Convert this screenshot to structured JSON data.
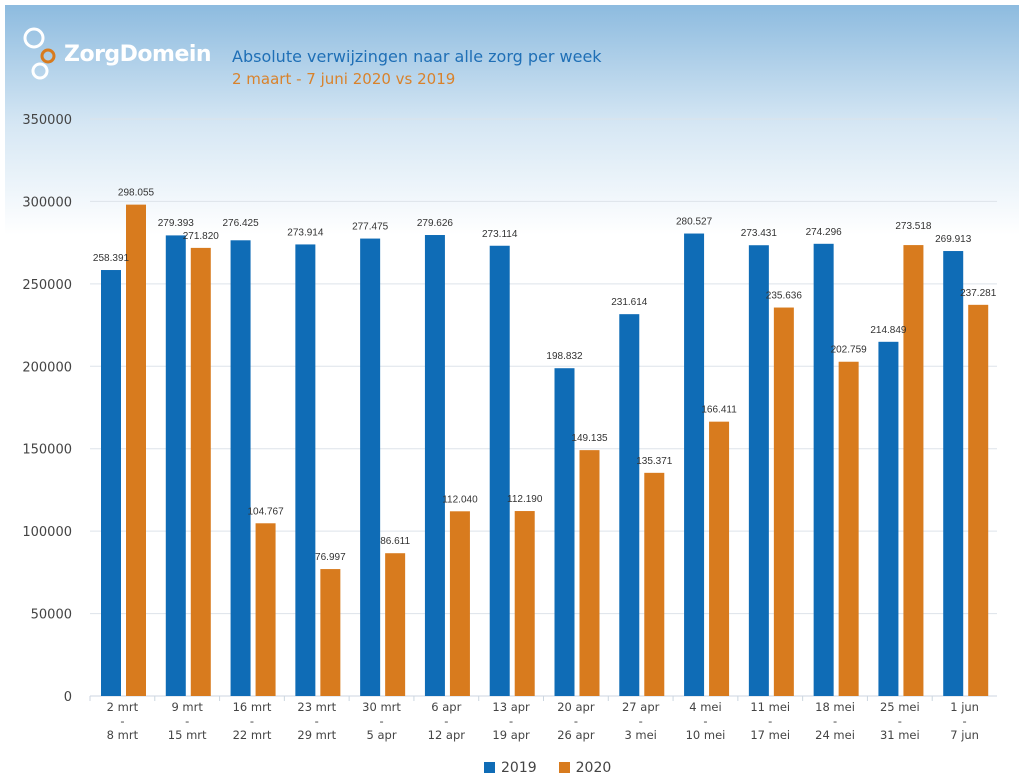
{
  "header": {
    "logo_text": "ZorgDomein"
  },
  "chart_data": {
    "type": "bar",
    "title": "Absolute verwijzingen naar alle zorg per week",
    "subtitle": "2 maart - 7 juni 2020 vs 2019",
    "categories": [
      [
        "2 mrt",
        "-",
        "8 mrt"
      ],
      [
        "9 mrt",
        "-",
        "15 mrt"
      ],
      [
        "16 mrt",
        "-",
        "22 mrt"
      ],
      [
        "23 mrt",
        "-",
        "29 mrt"
      ],
      [
        "30 mrt",
        "-",
        "5 apr"
      ],
      [
        "6 apr",
        "-",
        "12 apr"
      ],
      [
        "13 apr",
        "-",
        "19 apr"
      ],
      [
        "20 apr",
        "-",
        "26 apr"
      ],
      [
        "27 apr",
        "-",
        "3 mei"
      ],
      [
        "4 mei",
        "-",
        "10 mei"
      ],
      [
        "11 mei",
        "-",
        "17 mei"
      ],
      [
        "18 mei",
        "-",
        "24 mei"
      ],
      [
        "25 mei",
        "-",
        "31 mei"
      ],
      [
        "1 jun",
        "-",
        "7 jun"
      ]
    ],
    "series": [
      {
        "name": "2019",
        "color": "#0f6cb6",
        "values": [
          258391,
          279393,
          276425,
          273914,
          277475,
          279626,
          273114,
          198832,
          231614,
          280527,
          273431,
          274296,
          214849,
          269913
        ],
        "labels": [
          "258.391",
          "279.393",
          "276.425",
          "273.914",
          "277.475",
          "279.626",
          "273.114",
          "198.832",
          "231.614",
          "280.527",
          "273.431",
          "274.296",
          "214.849",
          "269.913"
        ]
      },
      {
        "name": "2020",
        "color": "#d87b1e",
        "values": [
          298055,
          271820,
          104767,
          76997,
          86611,
          112040,
          112190,
          149135,
          135371,
          166411,
          235636,
          202759,
          273518,
          237281
        ],
        "labels": [
          "298.055",
          "271.820",
          "104.767",
          "76.997",
          "86.611",
          "112.040",
          "112.190",
          "149.135",
          "135.371",
          "166.411",
          "235.636",
          "202.759",
          "273.518",
          "237.281"
        ]
      }
    ],
    "yticks": [
      "0",
      "50000",
      "100000",
      "150000",
      "200000",
      "250000",
      "300000",
      "350000"
    ],
    "ylim": [
      0,
      350000
    ],
    "grid": true,
    "legend": "bottom-center"
  }
}
